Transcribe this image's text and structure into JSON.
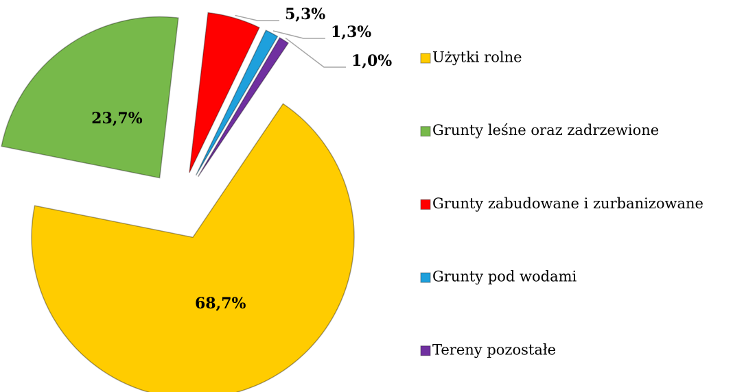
{
  "chart_data": {
    "type": "pie",
    "categories": [
      "Użytki rolne",
      "Grunty leśne oraz zadrzewione",
      "Grunty zabudowane i zurbanizowane",
      "Grunty pod wodami",
      "Tereny pozostałe"
    ],
    "values": [
      68.7,
      23.7,
      5.3,
      1.3,
      1.0
    ],
    "value_labels": [
      "68,7%",
      "23,7%",
      "5,3%",
      "1,3%",
      "1,0%"
    ],
    "colors": [
      "#ffcc00",
      "#77b94a",
      "#ff0000",
      "#1ea0dc",
      "#7030a0"
    ],
    "legend": "right"
  }
}
